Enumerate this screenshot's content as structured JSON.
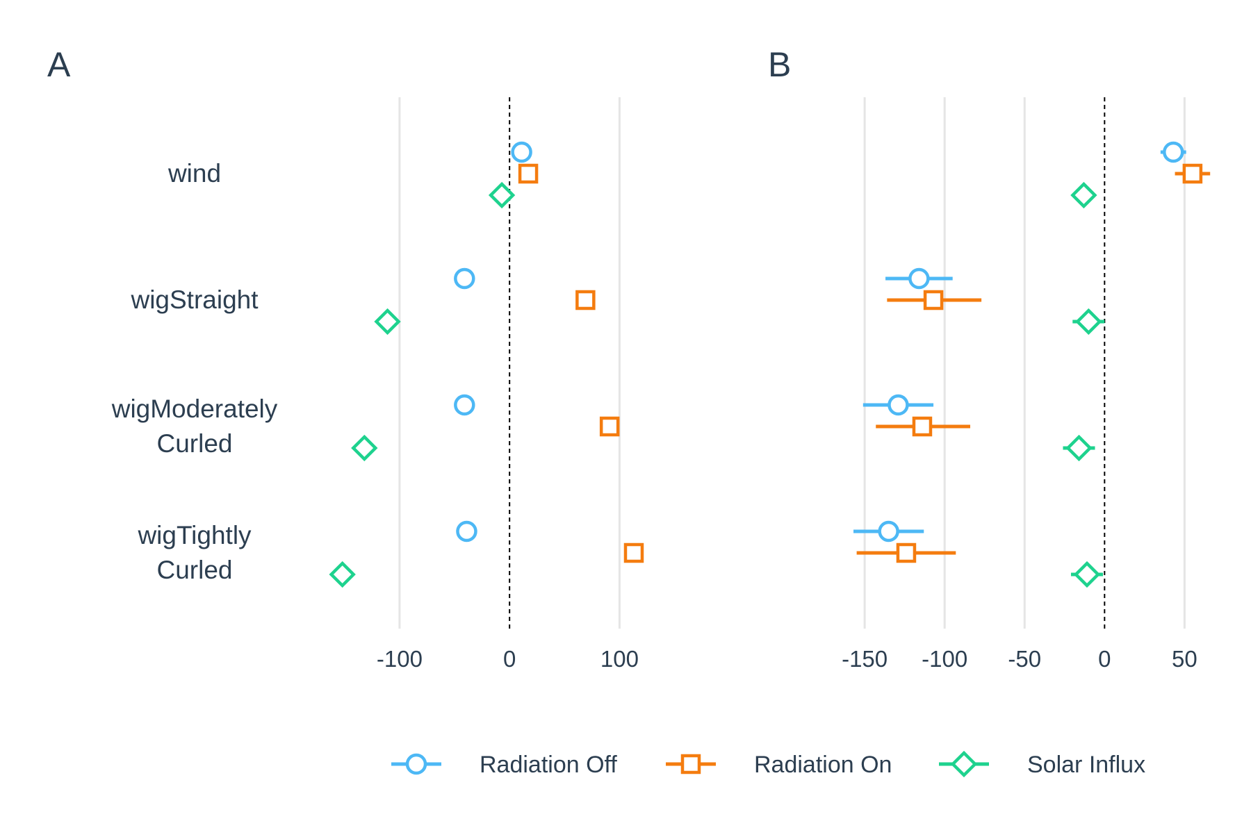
{
  "chart_data": [
    {
      "panel_label": "A",
      "type": "scatter",
      "xlim": [
        -160,
        180
      ],
      "xticks": [
        -100,
        0,
        100
      ],
      "xtick_labels": [
        "-100",
        "0",
        "100"
      ],
      "reference_line": 0,
      "grid": "vertical",
      "categories": [
        "wind",
        "wigStraight",
        "wigModerately Curled",
        "wigTightly Curled"
      ],
      "category_labels": [
        [
          "wind"
        ],
        [
          "wigStraight"
        ],
        [
          "wigModerately",
          "Curled"
        ],
        [
          "wigTightly",
          "Curled"
        ]
      ],
      "series": [
        {
          "name": "Radiation Off",
          "values": [
            11,
            -41,
            -41,
            -39
          ],
          "lower": [
            null,
            null,
            null,
            null
          ],
          "upper": [
            null,
            null,
            null,
            null
          ]
        },
        {
          "name": "Radiation On",
          "values": [
            17,
            69,
            91,
            113
          ],
          "lower": [
            null,
            null,
            null,
            null
          ],
          "upper": [
            null,
            null,
            null,
            null
          ]
        },
        {
          "name": "Solar Influx",
          "values": [
            -7,
            -111,
            -132,
            -152
          ],
          "lower": [
            null,
            null,
            null,
            null
          ],
          "upper": [
            null,
            null,
            null,
            null
          ]
        }
      ]
    },
    {
      "panel_label": "B",
      "type": "scatter",
      "xlim": [
        -167,
        72
      ],
      "xticks": [
        -150,
        -100,
        -50,
        0,
        50
      ],
      "xtick_labels": [
        "-150",
        "-100",
        "-50",
        "0",
        "50"
      ],
      "reference_line": 0,
      "grid": "vertical",
      "categories": [
        "wind",
        "wigStraight",
        "wigModerately Curled",
        "wigTightly Curled"
      ],
      "series": [
        {
          "name": "Radiation Off",
          "values": [
            43,
            -116,
            -129,
            -135
          ],
          "lower": [
            35,
            -137,
            -151,
            -157
          ],
          "upper": [
            51,
            -95,
            -107,
            -113
          ]
        },
        {
          "name": "Radiation On",
          "values": [
            55,
            -107,
            -114,
            -124
          ],
          "lower": [
            44,
            -136,
            -143,
            -155
          ],
          "upper": [
            66,
            -77,
            -84,
            -93
          ]
        },
        {
          "name": "Solar Influx",
          "values": [
            -13,
            -10,
            -16,
            -11
          ],
          "lower": [
            -13,
            -20,
            -26,
            -21
          ],
          "upper": [
            -13,
            0,
            -6,
            -1
          ]
        }
      ]
    }
  ],
  "legend": {
    "position": "bottom",
    "items": [
      {
        "label": "Radiation Off",
        "marker": "circle",
        "color": "#4db8f5"
      },
      {
        "label": "Radiation On",
        "marker": "square",
        "color": "#f47c0f"
      },
      {
        "label": "Solar Influx",
        "marker": "diamond",
        "color": "#1ed28e"
      }
    ]
  },
  "colors": {
    "text": "#2c3e50",
    "grid": "#e5e5e5",
    "reference": "#000000"
  }
}
